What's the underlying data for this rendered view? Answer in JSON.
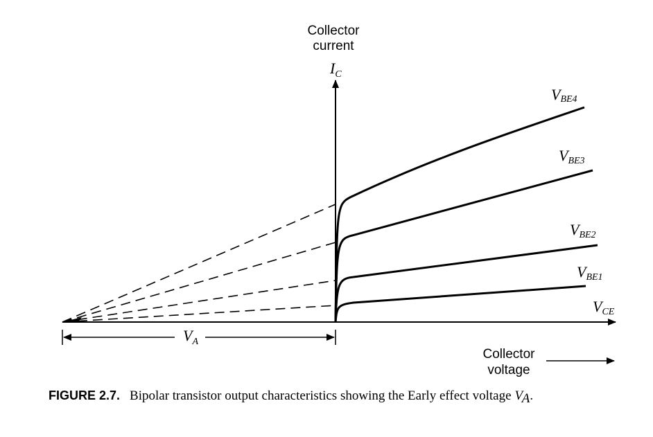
{
  "y_axis": {
    "label_lines": [
      "Collector",
      "current"
    ],
    "symbol": "I",
    "subscript": "C"
  },
  "x_axis": {
    "symbol": "V",
    "subscript": "CE",
    "label_lines": [
      "Collector",
      "voltage"
    ]
  },
  "curves": [
    {
      "symbol": "V",
      "subscript": "BE4"
    },
    {
      "symbol": "V",
      "subscript": "BE3"
    },
    {
      "symbol": "V",
      "subscript": "BE2"
    },
    {
      "symbol": "V",
      "subscript": "BE1"
    }
  ],
  "early_voltage": {
    "symbol": "V",
    "subscript": "A"
  },
  "caption": {
    "label": "FIGURE 2.7.",
    "text": "Bipolar transistor output characteristics showing the Early effect voltage",
    "symbol": "V",
    "subscript": "A",
    "end": "."
  }
}
